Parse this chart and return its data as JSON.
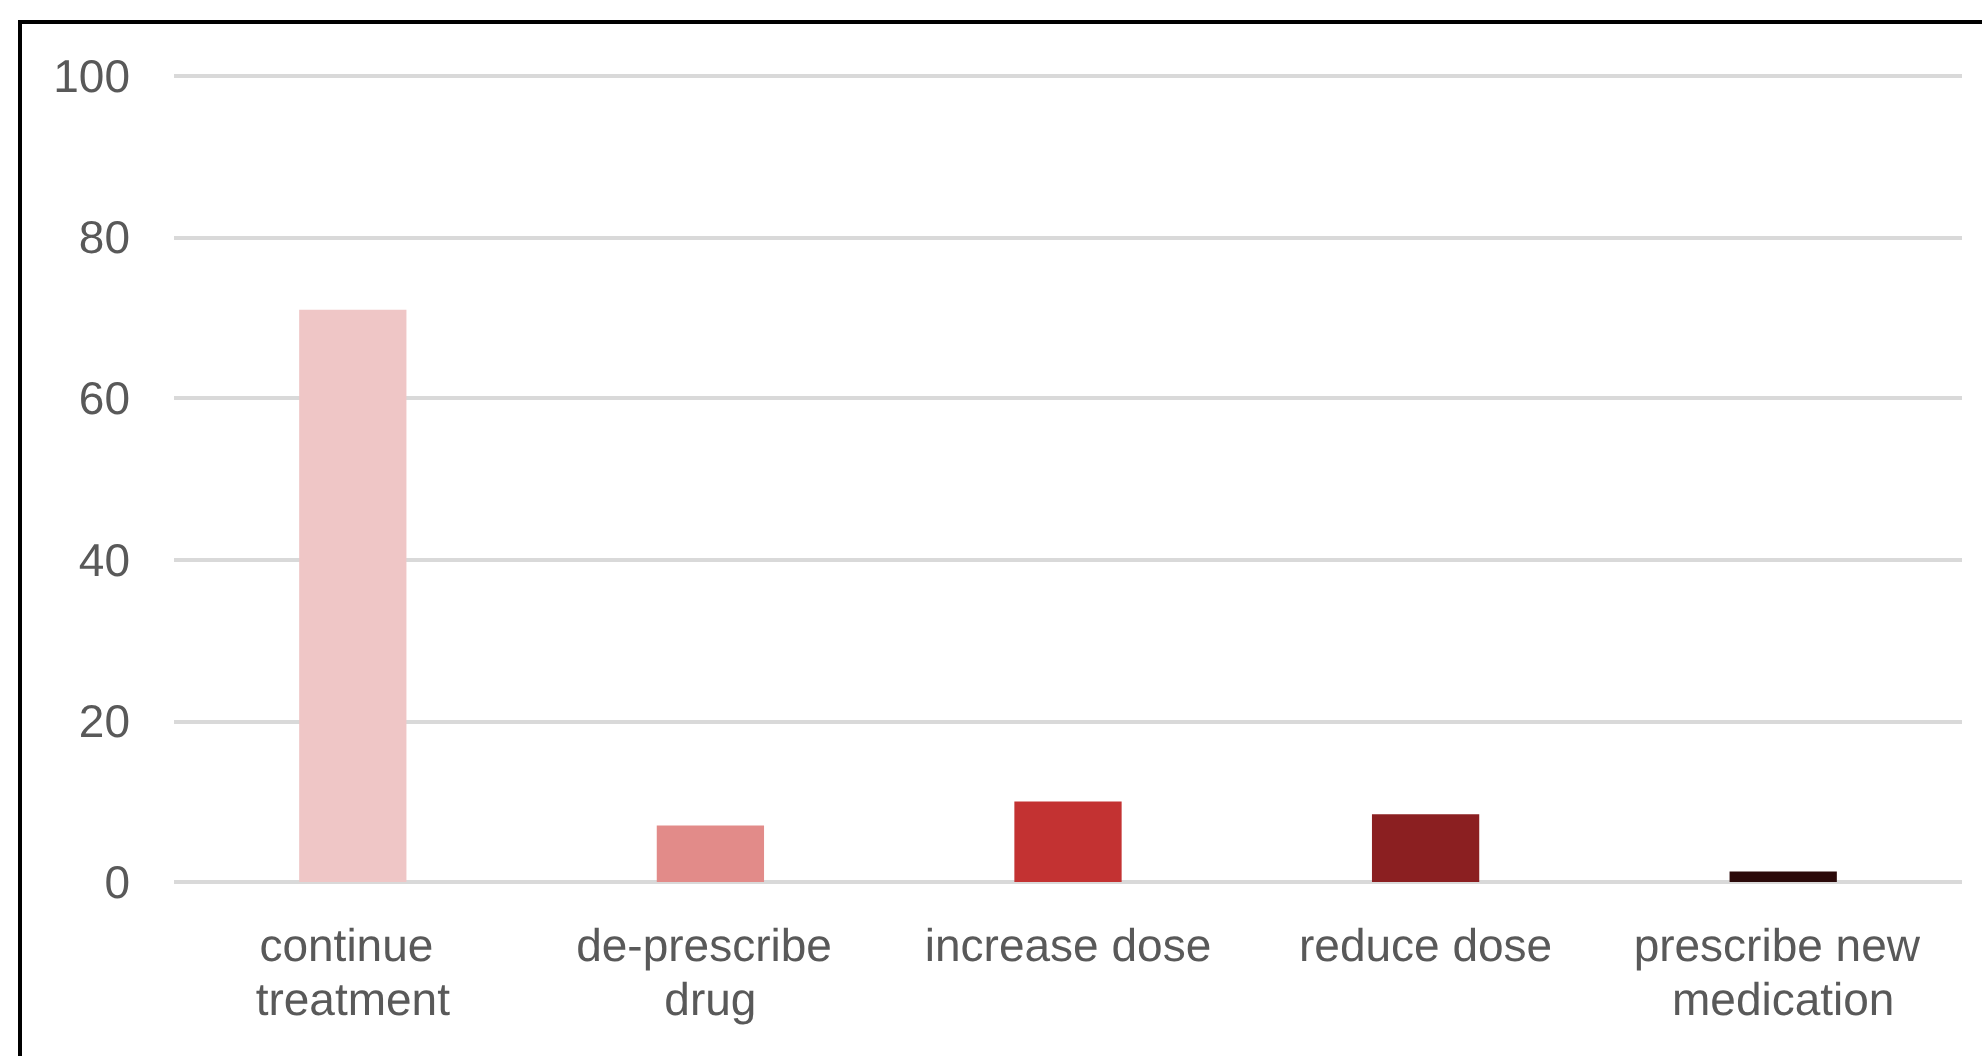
{
  "chart_data": {
    "type": "bar",
    "categories": [
      "continue treatment",
      "de-prescribe drug",
      "increase dose",
      "reduce dose",
      "prescribe new medication"
    ],
    "values": [
      71,
      7,
      10,
      8.4,
      1.3
    ],
    "colors": [
      "#efc6c6",
      "#e28b89",
      "#c33232",
      "#8b1f21",
      "#2b0a0a"
    ],
    "ylim": [
      0,
      100
    ],
    "yticks": [
      0,
      20,
      40,
      60,
      80,
      100
    ],
    "grid": "y"
  }
}
